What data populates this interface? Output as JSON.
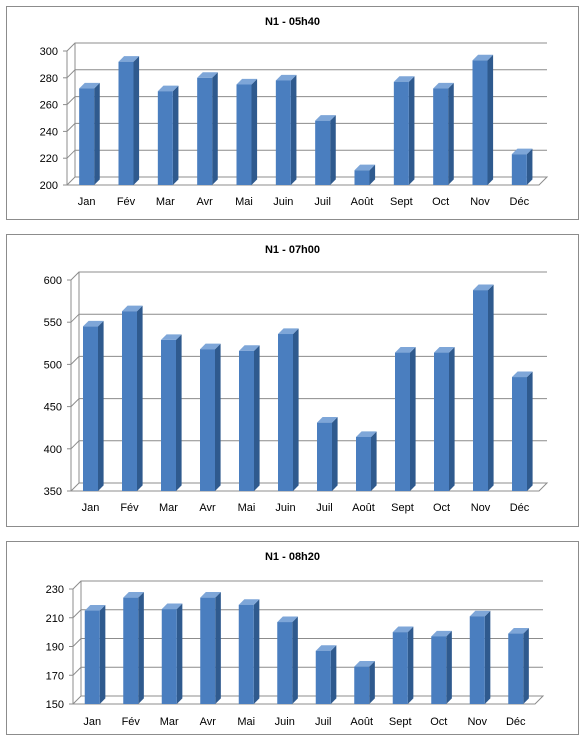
{
  "colors": {
    "bar_front": "#4a7ebf",
    "bar_side": "#2f5a8e",
    "bar_top": "#7ea6d8",
    "grid": "#8c8c8c"
  },
  "chart_data": [
    {
      "type": "bar",
      "title": "N1 - 05h40",
      "categories": [
        "Jan",
        "Fév",
        "Mar",
        "Avr",
        "Mai",
        "Juin",
        "Juil",
        "Août",
        "Sept",
        "Oct",
        "Nov",
        "Déc"
      ],
      "values": [
        272,
        292,
        270,
        280,
        275,
        278,
        248,
        211,
        277,
        272,
        293,
        223
      ],
      "ylim": [
        200,
        300
      ],
      "yticks": [
        200,
        220,
        240,
        260,
        280,
        300
      ],
      "grid": true,
      "legend": "none"
    },
    {
      "type": "bar",
      "title": "N1 - 07h00",
      "categories": [
        "Jan",
        "Fév",
        "Mar",
        "Avr",
        "Mai",
        "Juin",
        "Juil",
        "Août",
        "Sept",
        "Oct",
        "Nov",
        "Déc"
      ],
      "values": [
        545,
        563,
        529,
        518,
        516,
        536,
        431,
        414,
        514,
        514,
        588,
        485
      ],
      "ylim": [
        350,
        600
      ],
      "yticks": [
        350,
        400,
        450,
        500,
        550,
        600
      ],
      "grid": true,
      "legend": "none"
    },
    {
      "type": "bar",
      "title": "N1 - 08h20",
      "categories": [
        "Jan",
        "Fév",
        "Mar",
        "Avr",
        "Mai",
        "Juin",
        "Juil",
        "Août",
        "Sept",
        "Oct",
        "Nov",
        "Déc"
      ],
      "values": [
        215,
        224,
        216,
        224,
        219,
        207,
        187,
        176,
        200,
        197,
        211,
        199
      ],
      "ylim": [
        150,
        230
      ],
      "yticks": [
        150,
        170,
        190,
        210,
        230
      ],
      "grid": true,
      "legend": "none"
    }
  ]
}
